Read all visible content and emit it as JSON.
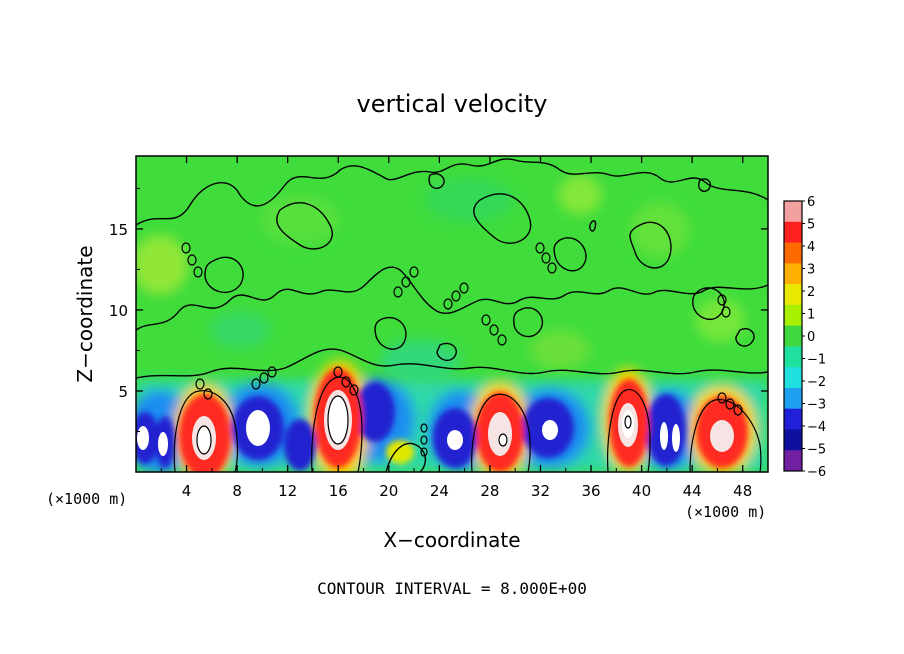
{
  "chart_data": {
    "type": "heatmap",
    "title": "vertical velocity",
    "xlabel": "X−coordinate",
    "ylabel": "Z−coordinate",
    "x_unit_left": "(×1000 m)",
    "x_unit_right": "(×1000 m)",
    "footer": "CONTOUR INTERVAL = 8.000E+00",
    "xlim": [
      0,
      50
    ],
    "ylim": [
      0,
      19.5
    ],
    "x_ticks": [
      4,
      8,
      12,
      16,
      20,
      24,
      28,
      32,
      36,
      40,
      44,
      48
    ],
    "x_tick_labels": [
      "4",
      "8",
      "12",
      "16",
      "20",
      "24",
      "28",
      "32",
      "36",
      "40",
      "44",
      "48"
    ],
    "y_ticks": [
      5,
      10,
      15
    ],
    "y_tick_labels": [
      "5",
      "10",
      "15"
    ],
    "colorbar": {
      "min": -6,
      "max": 6,
      "levels": [
        6,
        5,
        4,
        3,
        2,
        1,
        0,
        -1,
        -2,
        -3,
        -4,
        -5,
        -6
      ],
      "labels": [
        "6",
        "5",
        "4",
        "3",
        "2",
        "1",
        "0",
        "−1",
        "−2",
        "−3",
        "−4",
        "−5",
        "−6"
      ],
      "colors": [
        "#f2a0a0",
        "#ff2020",
        "#ff6a00",
        "#ffb000",
        "#e8e800",
        "#a8f000",
        "#40d840",
        "#20e0a0",
        "#20e0e0",
        "#20a0f0",
        "#2020d8",
        "#1010a0",
        "#7020a0"
      ]
    },
    "cells": [
      {
        "x": 0.8,
        "z": 2.2,
        "w": -6
      },
      {
        "x": 2.0,
        "z": 1.6,
        "w": -6
      },
      {
        "x": 5.4,
        "z": 2.3,
        "w": 6
      },
      {
        "x": 9.6,
        "z": 3.0,
        "w": -6
      },
      {
        "x": 13.2,
        "z": 2.0,
        "w": -5
      },
      {
        "x": 16.1,
        "z": 3.1,
        "w": 6
      },
      {
        "x": 19.0,
        "z": 3.6,
        "w": -5
      },
      {
        "x": 25.4,
        "z": 2.1,
        "w": -6
      },
      {
        "x": 29.2,
        "z": 2.3,
        "w": 6
      },
      {
        "x": 33.2,
        "z": 2.8,
        "w": -6
      },
      {
        "x": 38.8,
        "z": 3.2,
        "w": 6
      },
      {
        "x": 42.2,
        "z": 2.7,
        "w": -6
      },
      {
        "x": 43.4,
        "z": 2.5,
        "w": -6
      },
      {
        "x": 46.2,
        "z": 2.7,
        "w": 5
      },
      {
        "x": 4.0,
        "z": 13.5,
        "w": 1
      },
      {
        "x": 36.0,
        "z": 17.0,
        "w": 1
      },
      {
        "x": 20.0,
        "z": 0.8,
        "w": 2
      }
    ]
  }
}
